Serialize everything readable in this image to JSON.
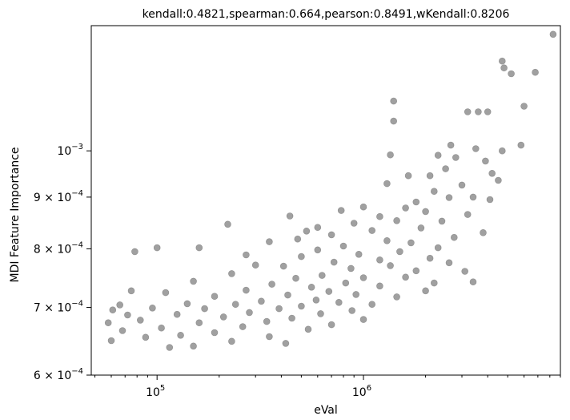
{
  "chart_data": {
    "type": "scatter",
    "title": "kendall:0.4821,spearman:0.664,pearson:0.8491,wKendall:0.8206",
    "xlabel": "eVal",
    "ylabel": "MDI Feature Importance",
    "xscale": "log",
    "yscale": "log",
    "xlim": [
      48000,
      9000000
    ],
    "ylim": [
      0.0006,
      0.00133
    ],
    "grid": false,
    "legend": "none",
    "marker_color": "#808080",
    "x_ticks": [
      {
        "value": 100000,
        "label_base": "10",
        "label_exp": "5"
      },
      {
        "value": 1000000,
        "label_base": "10",
        "label_exp": "6"
      }
    ],
    "y_ticks": [
      {
        "value": 0.0006,
        "label_mant": "6",
        "label_base": "10",
        "label_exp": "−4"
      },
      {
        "value": 0.0007,
        "label_mant": "7",
        "label_base": "10",
        "label_exp": "−4"
      },
      {
        "value": 0.0008,
        "label_mant": "8",
        "label_base": "10",
        "label_exp": "−4"
      },
      {
        "value": 0.0009,
        "label_mant": "9",
        "label_base": "10",
        "label_exp": "−4"
      },
      {
        "value": 0.001,
        "label_mant": "",
        "label_base": "10",
        "label_exp": "−3"
      }
    ],
    "series": [
      {
        "points": [
          [
            8300000,
            0.001304
          ],
          [
            4700000,
            0.001227
          ],
          [
            4800000,
            0.001208
          ],
          [
            6800000,
            0.001196
          ],
          [
            5200000,
            0.001192
          ],
          [
            1400000,
            0.00112
          ],
          [
            6000000,
            0.001107
          ],
          [
            3200000,
            0.001093
          ],
          [
            3600000,
            0.001093
          ],
          [
            4000000,
            0.001093
          ],
          [
            1400000,
            0.00107
          ],
          [
            5800000,
            0.001013
          ],
          [
            4700000,
            0.001
          ],
          [
            1350000,
            0.000991
          ],
          [
            2650000,
            0.001013
          ],
          [
            3500000,
            0.001005
          ],
          [
            2300000,
            0.00099
          ],
          [
            2800000,
            0.000985
          ],
          [
            3900000,
            0.000977
          ],
          [
            2500000,
            0.00096
          ],
          [
            2100000,
            0.000945
          ],
          [
            4200000,
            0.00095
          ],
          [
            1650000,
            0.000945
          ],
          [
            4500000,
            0.000935
          ],
          [
            3000000,
            0.000925
          ],
          [
            1300000,
            0.000928
          ],
          [
            2200000,
            0.000912
          ],
          [
            3400000,
            0.0009
          ],
          [
            2600000,
            0.000899
          ],
          [
            4100000,
            0.000895
          ],
          [
            1800000,
            0.00089
          ],
          [
            1000000,
            0.00088
          ],
          [
            1600000,
            0.000878
          ],
          [
            2000000,
            0.000871
          ],
          [
            3200000,
            0.000865
          ],
          [
            1200000,
            0.000861
          ],
          [
            440000,
            0.000862
          ],
          [
            780000,
            0.000873
          ],
          [
            900000,
            0.000848
          ],
          [
            1450000,
            0.000853
          ],
          [
            2400000,
            0.000852
          ],
          [
            220000,
            0.000846
          ],
          [
            3800000,
            0.00083
          ],
          [
            600000,
            0.00084
          ],
          [
            530000,
            0.000833
          ],
          [
            700000,
            0.000826
          ],
          [
            1100000,
            0.000834
          ],
          [
            1900000,
            0.000839
          ],
          [
            2750000,
            0.000821
          ],
          [
            480000,
            0.000818
          ],
          [
            1300000,
            0.000815
          ],
          [
            350000,
            0.000813
          ],
          [
            800000,
            0.000805
          ],
          [
            1700000,
            0.000811
          ],
          [
            2300000,
            0.000802
          ],
          [
            600000,
            0.000798
          ],
          [
            1500000,
            0.000795
          ],
          [
            950000,
            0.00079
          ],
          [
            270000,
            0.000789
          ],
          [
            500000,
            0.000786
          ],
          [
            1200000,
            0.00078
          ],
          [
            2100000,
            0.000783
          ],
          [
            300000,
            0.000771
          ],
          [
            720000,
            0.000776
          ],
          [
            160000,
            0.000802
          ],
          [
            100000,
            0.000802
          ],
          [
            78000,
            0.000795
          ],
          [
            410000,
            0.000769
          ],
          [
            870000,
            0.000765
          ],
          [
            1350000,
            0.00077
          ],
          [
            2600000,
            0.000775
          ],
          [
            3100000,
            0.00076
          ],
          [
            1800000,
            0.000761
          ],
          [
            630000,
            0.000753
          ],
          [
            230000,
            0.000756
          ],
          [
            1000000,
            0.000749
          ],
          [
            1600000,
            0.00075
          ],
          [
            3400000,
            0.000742
          ],
          [
            470000,
            0.000748
          ],
          [
            2200000,
            0.00074
          ],
          [
            820000,
            0.00074
          ],
          [
            360000,
            0.000738
          ],
          [
            150000,
            0.000743
          ],
          [
            1200000,
            0.000735
          ],
          [
            560000,
            0.000733
          ],
          [
            680000,
            0.000726
          ],
          [
            270000,
            0.000728
          ],
          [
            2000000,
            0.000727
          ],
          [
            920000,
            0.000721
          ],
          [
            430000,
            0.00072
          ],
          [
            1450000,
            0.000717
          ],
          [
            190000,
            0.000718
          ],
          [
            110000,
            0.000724
          ],
          [
            75000,
            0.000727
          ],
          [
            590000,
            0.000712
          ],
          [
            320000,
            0.00071
          ],
          [
            760000,
            0.000708
          ],
          [
            1100000,
            0.000705
          ],
          [
            240000,
            0.000705
          ],
          [
            140000,
            0.000706
          ],
          [
            66000,
            0.000704
          ],
          [
            500000,
            0.000702
          ],
          [
            390000,
            0.000698
          ],
          [
            880000,
            0.000695
          ],
          [
            170000,
            0.000698
          ],
          [
            95000,
            0.000699
          ],
          [
            61000,
            0.000696
          ],
          [
            280000,
            0.000692
          ],
          [
            620000,
            0.00069
          ],
          [
            125000,
            0.000689
          ],
          [
            72000,
            0.000688
          ],
          [
            210000,
            0.000685
          ],
          [
            1000000,
            0.000681
          ],
          [
            450000,
            0.000683
          ],
          [
            340000,
            0.000678
          ],
          [
            83000,
            0.00068
          ],
          [
            160000,
            0.000676
          ],
          [
            58000,
            0.000676
          ],
          [
            260000,
            0.00067
          ],
          [
            700000,
            0.000673
          ],
          [
            105000,
            0.000668
          ],
          [
            540000,
            0.000666
          ],
          [
            190000,
            0.000661
          ],
          [
            68000,
            0.000664
          ],
          [
            130000,
            0.000657
          ],
          [
            350000,
            0.000655
          ],
          [
            230000,
            0.000648
          ],
          [
            88000,
            0.000654
          ],
          [
            60000,
            0.000649
          ],
          [
            150000,
            0.000641
          ],
          [
            420000,
            0.000645
          ],
          [
            115000,
            0.000639
          ]
        ]
      }
    ]
  }
}
